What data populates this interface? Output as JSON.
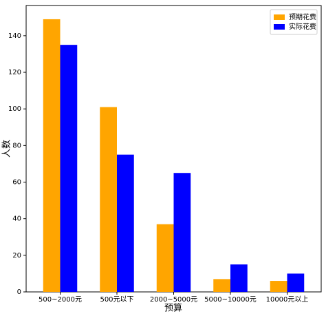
{
  "chart_data": {
    "type": "bar",
    "xlabel": "预算",
    "ylabel": "人数",
    "categories": [
      "500~2000元",
      "500元以下",
      "2000~5000元",
      "5000~10000元",
      "10000元以上"
    ],
    "series": [
      {
        "name": "预期花费",
        "color": "#ffa500",
        "values": [
          149,
          101,
          37,
          7,
          6
        ]
      },
      {
        "name": "实际花费",
        "color": "#0000ff",
        "values": [
          135,
          75,
          65,
          15,
          10
        ]
      }
    ],
    "ylim": [
      0,
      156.5
    ],
    "yticks": [
      0,
      20,
      40,
      60,
      80,
      100,
      120,
      140
    ],
    "legend": "upper right"
  }
}
